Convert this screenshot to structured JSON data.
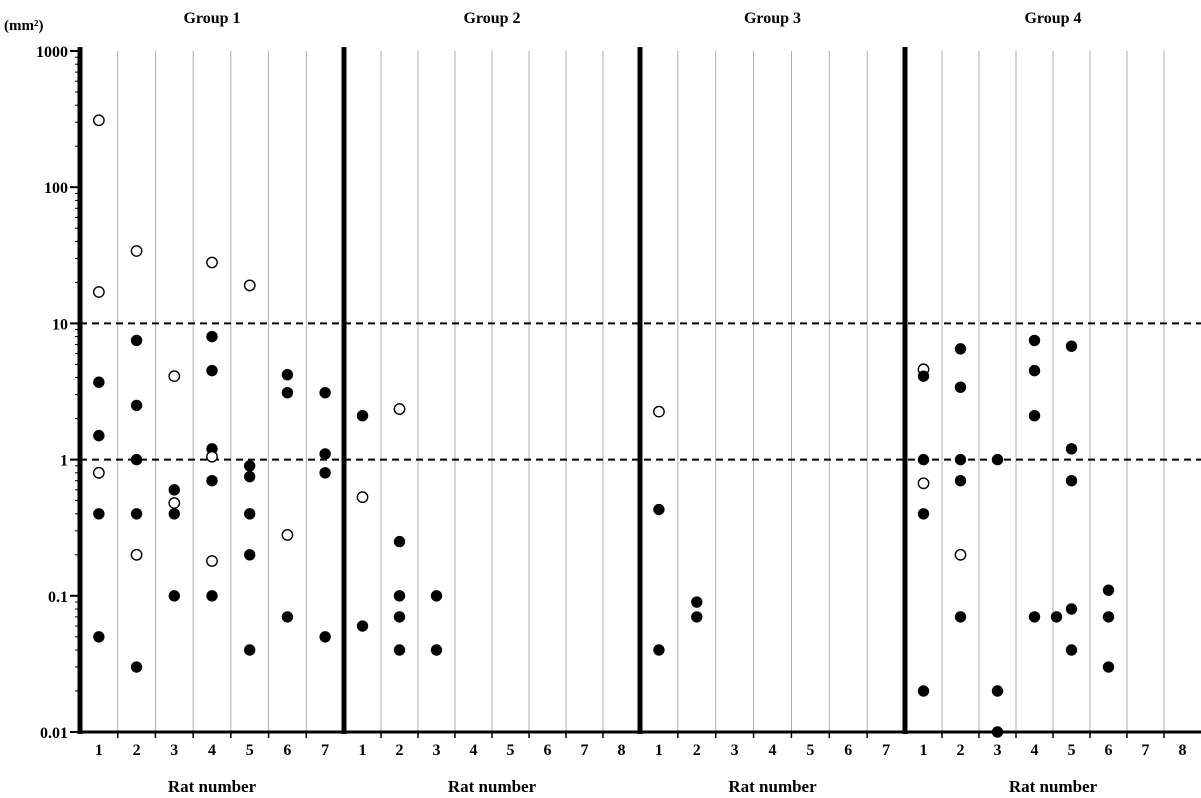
{
  "chart_data": {
    "type": "scatter",
    "yunit": "(mm²)",
    "xlabel": "Rat number",
    "yscale": "log",
    "ylim": [
      0.01,
      1000
    ],
    "yticks": [
      "1000",
      "100",
      "10",
      "1",
      "0.1",
      "0.01"
    ],
    "reference_lines": [
      10,
      1
    ],
    "legend": "none",
    "grid": "vertical lines between rats",
    "colors": {
      "filled": "#000000",
      "open": "#ffffff",
      "open_stroke": "#000000"
    },
    "groups": [
      {
        "title": "Group 1",
        "rats": [
          "1",
          "2",
          "3",
          "4",
          "5",
          "6",
          "7"
        ],
        "points": [
          {
            "rat": 1,
            "y": 310,
            "filled": false
          },
          {
            "rat": 1,
            "y": 17,
            "filled": false
          },
          {
            "rat": 1,
            "y": 3.7,
            "filled": true
          },
          {
            "rat": 1,
            "y": 1.5,
            "filled": true
          },
          {
            "rat": 1,
            "y": 0.8,
            "filled": false
          },
          {
            "rat": 1,
            "y": 0.4,
            "filled": true
          },
          {
            "rat": 1,
            "y": 0.05,
            "filled": true
          },
          {
            "rat": 2,
            "y": 34,
            "filled": false
          },
          {
            "rat": 2,
            "y": 7.5,
            "filled": true
          },
          {
            "rat": 2,
            "y": 2.5,
            "filled": true
          },
          {
            "rat": 2,
            "y": 1.0,
            "filled": true
          },
          {
            "rat": 2,
            "y": 0.4,
            "filled": true
          },
          {
            "rat": 2,
            "y": 0.2,
            "filled": false
          },
          {
            "rat": 2,
            "y": 0.03,
            "filled": true
          },
          {
            "rat": 3,
            "y": 4.1,
            "filled": false
          },
          {
            "rat": 3,
            "y": 0.6,
            "filled": true
          },
          {
            "rat": 3,
            "y": 0.48,
            "filled": false
          },
          {
            "rat": 3,
            "y": 0.4,
            "filled": true
          },
          {
            "rat": 3,
            "y": 0.1,
            "filled": true
          },
          {
            "rat": 4,
            "y": 28,
            "filled": false
          },
          {
            "rat": 4,
            "y": 8.0,
            "filled": true
          },
          {
            "rat": 4,
            "y": 4.5,
            "filled": true
          },
          {
            "rat": 4,
            "y": 1.2,
            "filled": true
          },
          {
            "rat": 4,
            "y": 1.05,
            "filled": false
          },
          {
            "rat": 4,
            "y": 0.7,
            "filled": true
          },
          {
            "rat": 4,
            "y": 0.18,
            "filled": false
          },
          {
            "rat": 4,
            "y": 0.1,
            "filled": true
          },
          {
            "rat": 5,
            "y": 19,
            "filled": false
          },
          {
            "rat": 5,
            "y": 0.9,
            "filled": true
          },
          {
            "rat": 5,
            "y": 0.75,
            "filled": true
          },
          {
            "rat": 5,
            "y": 0.4,
            "filled": true
          },
          {
            "rat": 5,
            "y": 0.2,
            "filled": true
          },
          {
            "rat": 5,
            "y": 0.04,
            "filled": true
          },
          {
            "rat": 6,
            "y": 4.2,
            "filled": true
          },
          {
            "rat": 6,
            "y": 3.1,
            "filled": true
          },
          {
            "rat": 6,
            "y": 0.28,
            "filled": false
          },
          {
            "rat": 6,
            "y": 0.07,
            "filled": true
          },
          {
            "rat": 7,
            "y": 3.1,
            "filled": true
          },
          {
            "rat": 7,
            "y": 1.1,
            "filled": true
          },
          {
            "rat": 7,
            "y": 0.8,
            "filled": true
          },
          {
            "rat": 7,
            "y": 0.05,
            "filled": true
          }
        ]
      },
      {
        "title": "Group 2",
        "rats": [
          "1",
          "2",
          "3",
          "4",
          "5",
          "6",
          "7",
          "8"
        ],
        "points": [
          {
            "rat": 1,
            "y": 2.1,
            "filled": true
          },
          {
            "rat": 1,
            "y": 0.53,
            "filled": false
          },
          {
            "rat": 1,
            "y": 0.06,
            "filled": true
          },
          {
            "rat": 2,
            "y": 2.35,
            "filled": false
          },
          {
            "rat": 2,
            "y": 0.25,
            "filled": true
          },
          {
            "rat": 2,
            "y": 0.1,
            "filled": true
          },
          {
            "rat": 2,
            "y": 0.07,
            "filled": true
          },
          {
            "rat": 2,
            "y": 0.04,
            "filled": true
          },
          {
            "rat": 3,
            "y": 0.1,
            "filled": true
          },
          {
            "rat": 3,
            "y": 0.04,
            "filled": true
          }
        ]
      },
      {
        "title": "Group 3",
        "rats": [
          "1",
          "2",
          "3",
          "4",
          "5",
          "6",
          "7"
        ],
        "points": [
          {
            "rat": 1,
            "y": 2.25,
            "filled": false
          },
          {
            "rat": 1,
            "y": 0.43,
            "filled": true
          },
          {
            "rat": 1,
            "y": 0.04,
            "filled": true
          },
          {
            "rat": 2,
            "y": 0.09,
            "filled": true
          },
          {
            "rat": 2,
            "y": 0.07,
            "filled": true
          }
        ]
      },
      {
        "title": "Group 4",
        "rats": [
          "1",
          "2",
          "3",
          "4",
          "5",
          "6",
          "7",
          "8"
        ],
        "points": [
          {
            "rat": 1,
            "y": 4.6,
            "filled": false
          },
          {
            "rat": 1,
            "y": 4.1,
            "filled": true
          },
          {
            "rat": 1,
            "y": 1.0,
            "filled": true
          },
          {
            "rat": 1,
            "y": 0.67,
            "filled": false
          },
          {
            "rat": 1,
            "y": 0.4,
            "filled": true
          },
          {
            "rat": 1,
            "y": 0.02,
            "filled": true
          },
          {
            "rat": 2,
            "y": 6.5,
            "filled": true
          },
          {
            "rat": 2,
            "y": 3.4,
            "filled": true
          },
          {
            "rat": 2,
            "y": 1.0,
            "filled": true
          },
          {
            "rat": 2,
            "y": 0.7,
            "filled": true
          },
          {
            "rat": 2,
            "y": 0.2,
            "filled": false
          },
          {
            "rat": 2,
            "y": 0.07,
            "filled": true
          },
          {
            "rat": 3,
            "y": 1.0,
            "filled": true
          },
          {
            "rat": 3,
            "y": 0.02,
            "filled": true
          },
          {
            "rat": 3,
            "y": 0.01,
            "filled": true
          },
          {
            "rat": 4,
            "y": 7.5,
            "filled": true
          },
          {
            "rat": 4,
            "y": 4.5,
            "filled": true
          },
          {
            "rat": 4,
            "y": 2.1,
            "filled": true
          },
          {
            "rat": 4,
            "y": 0.07,
            "filled": true
          },
          {
            "rat": 4,
            "y": 0.07,
            "filled": true
          },
          {
            "rat": 5,
            "y": 6.8,
            "filled": true
          },
          {
            "rat": 5,
            "y": 1.2,
            "filled": true
          },
          {
            "rat": 5,
            "y": 0.7,
            "filled": true
          },
          {
            "rat": 5,
            "y": 0.08,
            "filled": true
          },
          {
            "rat": 5,
            "y": 0.04,
            "filled": true
          },
          {
            "rat": 6,
            "y": 0.11,
            "filled": true
          },
          {
            "rat": 6,
            "y": 0.07,
            "filled": true
          },
          {
            "rat": 6,
            "y": 0.03,
            "filled": true
          }
        ]
      }
    ]
  }
}
